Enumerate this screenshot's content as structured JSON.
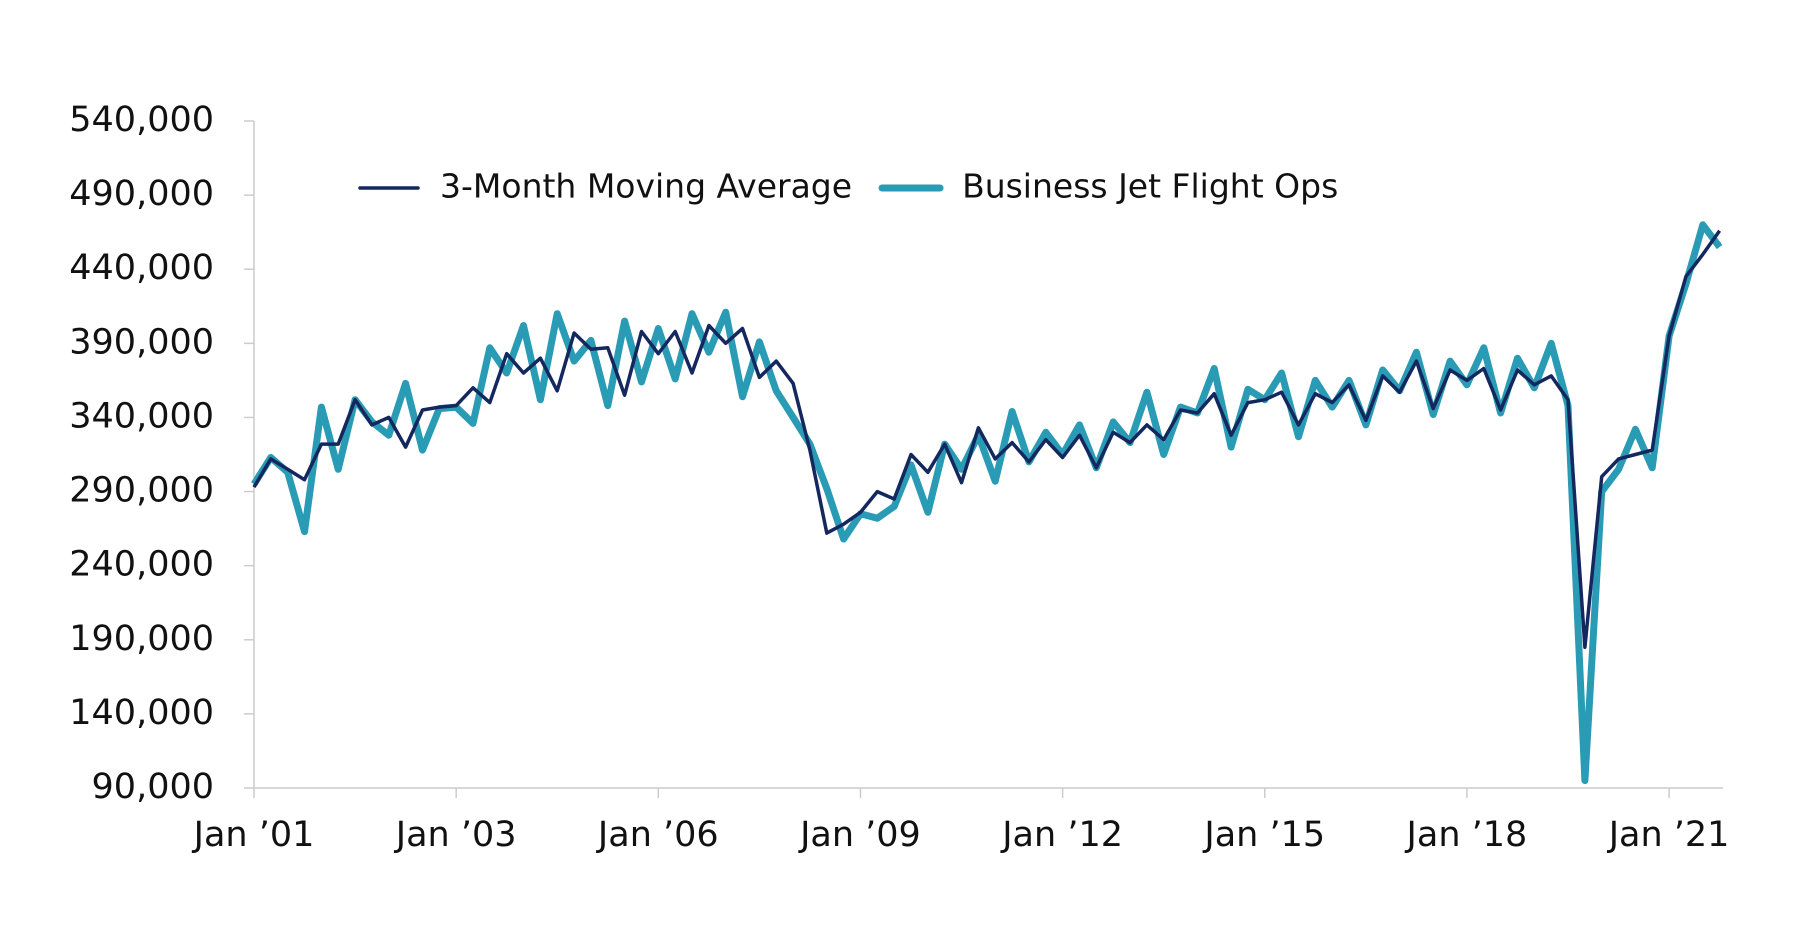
{
  "chart_data": {
    "type": "line",
    "categories": [
      "Jan ’01",
      null,
      null,
      null,
      null,
      null,
      null,
      null,
      null,
      null,
      null,
      null,
      "Jan ’03",
      null,
      null,
      null,
      null,
      null,
      null,
      null,
      null,
      null,
      null,
      null,
      "Jan ’06",
      null,
      null,
      null,
      null,
      null,
      null,
      null,
      null,
      null,
      null,
      null,
      "Jan ’09",
      null,
      null,
      null,
      null,
      null,
      null,
      null,
      null,
      null,
      null,
      null,
      "Jan ’12",
      null,
      null,
      null,
      null,
      null,
      null,
      null,
      null,
      null,
      null,
      null,
      "Jan ’15",
      null,
      null,
      null,
      null,
      null,
      null,
      null,
      null,
      null,
      null,
      null,
      "Jan ’18",
      null,
      null,
      null,
      null,
      null,
      null,
      null,
      null,
      null,
      null,
      null,
      "Jan ’21",
      null,
      null,
      null
    ],
    "series": [
      {
        "name": "3-Month Moving Average",
        "color": "#14285f",
        "values": [
          293000,
          312000,
          305000,
          298000,
          322000,
          322000,
          352000,
          335000,
          340000,
          320000,
          345000,
          347000,
          348000,
          360000,
          350000,
          383000,
          370000,
          380000,
          358000,
          397000,
          386000,
          387000,
          355000,
          398000,
          383000,
          398000,
          370000,
          402000,
          390000,
          400000,
          367000,
          378000,
          363000,
          318000,
          262000,
          268000,
          276000,
          290000,
          285000,
          315000,
          303000,
          322000,
          296000,
          333000,
          312000,
          323000,
          310000,
          325000,
          313000,
          328000,
          306000,
          330000,
          323000,
          335000,
          325000,
          345000,
          343000,
          356000,
          328000,
          350000,
          352000,
          357000,
          335000,
          356000,
          350000,
          362000,
          338000,
          368000,
          357000,
          378000,
          346000,
          372000,
          365000,
          373000,
          345000,
          372000,
          362000,
          368000,
          352000,
          185000,
          300000,
          312000,
          315000,
          318000,
          395000,
          435000,
          450000,
          466000
        ]
      },
      {
        "name": "Business Jet Flight Ops",
        "color": "#2a9bb5",
        "values": [
          295000,
          313000,
          303000,
          263000,
          347000,
          305000,
          352000,
          337000,
          328000,
          363000,
          318000,
          346000,
          347000,
          336000,
          387000,
          370000,
          402000,
          352000,
          410000,
          378000,
          392000,
          348000,
          405000,
          364000,
          400000,
          366000,
          410000,
          384000,
          411000,
          354000,
          391000,
          358000,
          340000,
          322000,
          292000,
          258000,
          275000,
          272000,
          280000,
          308000,
          276000,
          322000,
          305000,
          328000,
          297000,
          344000,
          310000,
          330000,
          315000,
          335000,
          306000,
          337000,
          323000,
          357000,
          315000,
          347000,
          343000,
          373000,
          320000,
          359000,
          352000,
          370000,
          327000,
          365000,
          347000,
          365000,
          335000,
          372000,
          358000,
          384000,
          342000,
          378000,
          362000,
          387000,
          343000,
          380000,
          360000,
          390000,
          348000,
          95000,
          290000,
          305000,
          332000,
          306000,
          395000,
          430000,
          470000,
          455000
        ]
      }
    ],
    "ylim": [
      90000,
      540000
    ],
    "yticks": [
      {
        "value": 90000,
        "label": "90,000"
      },
      {
        "value": 140000,
        "label": "140,000"
      },
      {
        "value": 190000,
        "label": "190,000"
      },
      {
        "value": 240000,
        "label": "240,000"
      },
      {
        "value": 290000,
        "label": "290,000"
      },
      {
        "value": 340000,
        "label": "340,000"
      },
      {
        "value": 390000,
        "label": "390,000"
      },
      {
        "value": 440000,
        "label": "440,000"
      },
      {
        "value": 490000,
        "label": "490,000"
      },
      {
        "value": 540000,
        "label": "540,000"
      }
    ],
    "grid": false,
    "legend": "top"
  }
}
